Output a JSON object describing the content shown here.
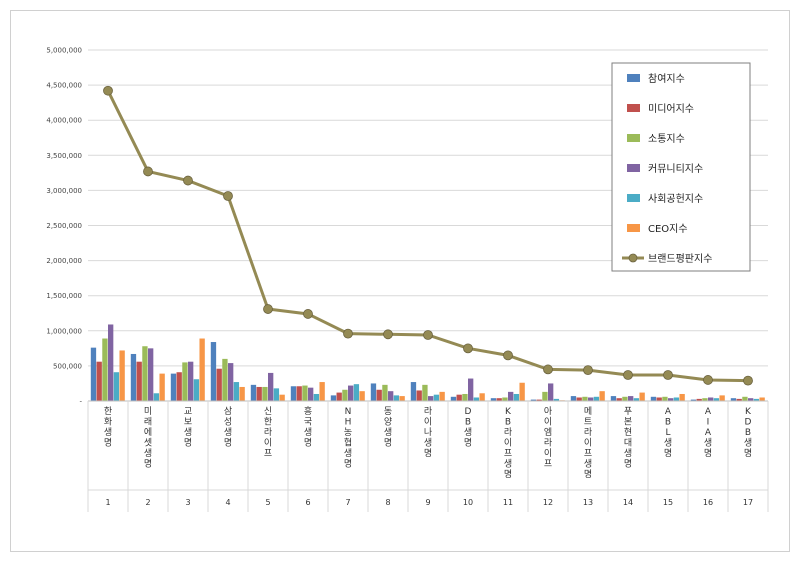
{
  "chart_data": {
    "type": "bar",
    "title": "",
    "xlabel": "",
    "ylabel": "",
    "ylim": [
      0,
      5000000
    ],
    "y_ticks": [
      "-",
      "500,000",
      "1,000,000",
      "1,500,000",
      "2,000,000",
      "2,500,000",
      "3,000,000",
      "3,500,000",
      "4,000,000",
      "4,500,000",
      "5,000,000"
    ],
    "grid": true,
    "legend_position": "top-right",
    "categories": [
      "한화생명",
      "미래에셋생명",
      "교보생명",
      "삼성생명",
      "신한라이프",
      "흥국생명",
      "NH농협생명",
      "동양생명",
      "라이나생명",
      "DB생명",
      "KB라이프생명",
      "아이엠라이프",
      "메트라이프생명",
      "푸본현대생명",
      "ABL생명",
      "AIA생명",
      "KDB생명"
    ],
    "ranks": [
      "1",
      "2",
      "3",
      "4",
      "5",
      "6",
      "7",
      "8",
      "9",
      "10",
      "11",
      "12",
      "13",
      "14",
      "15",
      "16",
      "17"
    ],
    "series": [
      {
        "name": "참여지수",
        "color": "#4f81bd",
        "values": [
          760000,
          670000,
          390000,
          840000,
          230000,
          210000,
          80000,
          250000,
          270000,
          60000,
          40000,
          20000,
          70000,
          70000,
          60000,
          20000,
          40000
        ]
      },
      {
        "name": "미디어지수",
        "color": "#c0504d",
        "values": [
          560000,
          560000,
          410000,
          460000,
          200000,
          210000,
          120000,
          160000,
          150000,
          90000,
          40000,
          20000,
          50000,
          40000,
          50000,
          30000,
          30000
        ]
      },
      {
        "name": "소통지수",
        "color": "#9bbb59",
        "values": [
          890000,
          780000,
          550000,
          600000,
          200000,
          220000,
          160000,
          230000,
          230000,
          100000,
          50000,
          130000,
          60000,
          60000,
          60000,
          40000,
          60000
        ]
      },
      {
        "name": "커뮤니티지수",
        "color": "#8064a2",
        "values": [
          1090000,
          750000,
          560000,
          540000,
          400000,
          190000,
          220000,
          140000,
          70000,
          320000,
          130000,
          250000,
          50000,
          70000,
          40000,
          50000,
          40000
        ]
      },
      {
        "name": "사회공헌지수",
        "color": "#4bacc6",
        "values": [
          410000,
          110000,
          310000,
          270000,
          180000,
          100000,
          240000,
          80000,
          90000,
          50000,
          100000,
          30000,
          60000,
          40000,
          50000,
          40000,
          30000
        ]
      },
      {
        "name": "CEO지수",
        "color": "#f79646",
        "values": [
          720000,
          390000,
          890000,
          200000,
          90000,
          270000,
          140000,
          70000,
          130000,
          110000,
          260000,
          10000,
          140000,
          120000,
          100000,
          80000,
          50000
        ]
      }
    ],
    "line": {
      "name": "브랜드평판지수",
      "color": "#948a54",
      "values": [
        4420000,
        3270000,
        3140000,
        2920000,
        1310000,
        1240000,
        960000,
        950000,
        940000,
        750000,
        650000,
        450000,
        440000,
        370000,
        370000,
        300000,
        290000
      ]
    }
  }
}
